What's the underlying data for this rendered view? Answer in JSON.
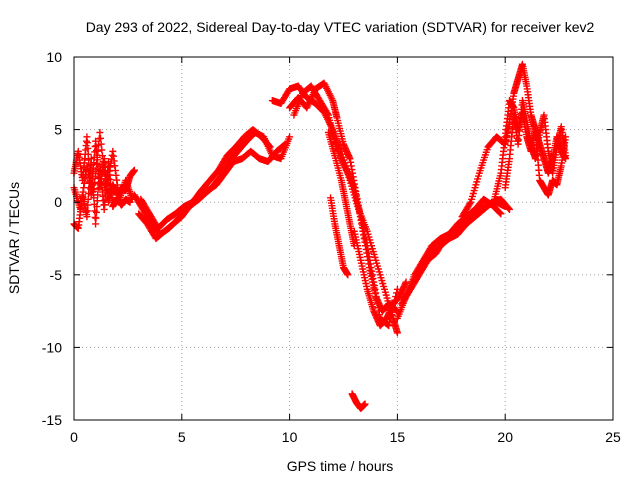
{
  "chart_data": {
    "type": "scatter",
    "title": "Day 293 of 2022, Sidereal Day-to-day VTEC variation (SDTVAR) for receiver kev2",
    "xlabel": "GPS time / hours",
    "ylabel": "SDTVAR / TECUs",
    "xlim": [
      0,
      25
    ],
    "ylim": [
      -15,
      10
    ],
    "xticks": [
      0,
      5,
      10,
      15,
      20,
      25
    ],
    "yticks": [
      -15,
      -10,
      -5,
      0,
      5,
      10
    ],
    "xtick_labels": [
      "0",
      "5",
      "10",
      "15",
      "20",
      "25"
    ],
    "ytick_labels": [
      "-15",
      "-10",
      "-5",
      "0",
      "5",
      "10"
    ],
    "grid": true,
    "marker": "+",
    "series": [
      {
        "name": "SDTVAR",
        "color": "#ff0000",
        "tracks": [
          [
            [
              0.0,
              2.0
            ],
            [
              0.2,
              3.5
            ],
            [
              0.4,
              1.5
            ],
            [
              0.6,
              4.5
            ],
            [
              0.8,
              0.5
            ],
            [
              1.0,
              4.2
            ],
            [
              1.2,
              1.0
            ],
            [
              1.4,
              3.0
            ],
            [
              1.6,
              0.0
            ],
            [
              1.8,
              1.2
            ],
            [
              2.0,
              0.5
            ],
            [
              2.2,
              1.0
            ],
            [
              2.4,
              0.8
            ],
            [
              2.6,
              1.8
            ],
            [
              2.8,
              2.2
            ]
          ],
          [
            [
              0.0,
              -1.5
            ],
            [
              0.2,
              -1.8
            ],
            [
              0.4,
              0.5
            ],
            [
              0.6,
              -1.0
            ],
            [
              0.8,
              3.0
            ],
            [
              1.0,
              -1.5
            ],
            [
              1.2,
              2.5
            ],
            [
              1.4,
              -0.5
            ],
            [
              1.6,
              2.8
            ],
            [
              1.8,
              -0.3
            ],
            [
              2.0,
              0.3
            ],
            [
              2.2,
              -0.2
            ],
            [
              2.4,
              0.2
            ],
            [
              2.6,
              0.0
            ]
          ],
          [
            [
              0.0,
              1.0
            ],
            [
              0.3,
              -0.5
            ],
            [
              0.6,
              2.5
            ],
            [
              0.9,
              0.5
            ],
            [
              1.2,
              4.8
            ],
            [
              1.5,
              0.8
            ],
            [
              1.8,
              3.5
            ],
            [
              2.1,
              0.2
            ],
            [
              2.4,
              1.5
            ],
            [
              2.7,
              0.2
            ]
          ],
          [
            [
              2.8,
              0.5
            ],
            [
              3.2,
              -0.5
            ],
            [
              3.6,
              -1.5
            ],
            [
              4.0,
              -2.2
            ],
            [
              4.4,
              -1.8
            ],
            [
              4.8,
              -1.2
            ],
            [
              5.2,
              -0.5
            ],
            [
              5.6,
              0.0
            ],
            [
              6.0,
              0.5
            ],
            [
              6.4,
              1.0
            ],
            [
              6.8,
              1.8
            ],
            [
              7.2,
              2.8
            ],
            [
              7.6,
              3.5
            ],
            [
              8.0,
              4.2
            ],
            [
              8.4,
              4.8
            ],
            [
              8.8,
              4.5
            ],
            [
              9.2,
              3.2
            ],
            [
              9.6,
              3.0
            ],
            [
              10.0,
              4.5
            ]
          ],
          [
            [
              3.0,
              -0.8
            ],
            [
              3.4,
              -1.5
            ],
            [
              3.8,
              -2.5
            ],
            [
              4.2,
              -2.0
            ],
            [
              4.6,
              -1.5
            ],
            [
              5.0,
              -1.0
            ],
            [
              5.4,
              -0.2
            ],
            [
              5.8,
              0.2
            ],
            [
              6.2,
              0.8
            ],
            [
              6.6,
              1.2
            ],
            [
              7.0,
              2.0
            ],
            [
              7.4,
              2.8
            ],
            [
              7.8,
              3.0
            ],
            [
              8.2,
              3.5
            ],
            [
              8.6,
              3.0
            ],
            [
              9.0,
              2.8
            ],
            [
              9.4,
              3.5
            ],
            [
              9.8,
              4.0
            ]
          ],
          [
            [
              3.1,
              0.2
            ],
            [
              3.5,
              -0.8
            ],
            [
              3.9,
              -1.8
            ],
            [
              4.3,
              -1.2
            ],
            [
              4.7,
              -0.8
            ],
            [
              5.1,
              -0.3
            ],
            [
              5.5,
              0.0
            ],
            [
              5.9,
              0.8
            ],
            [
              6.3,
              1.5
            ],
            [
              6.7,
              2.2
            ],
            [
              7.1,
              3.2
            ],
            [
              7.5,
              3.8
            ],
            [
              7.9,
              4.5
            ],
            [
              8.3,
              5.0
            ],
            [
              8.7,
              4.5
            ],
            [
              9.1,
              3.8
            ]
          ],
          [
            [
              9.2,
              7.0
            ],
            [
              9.6,
              6.8
            ],
            [
              10.0,
              7.8
            ],
            [
              10.4,
              8.0
            ],
            [
              10.8,
              7.2
            ],
            [
              11.2,
              6.8
            ],
            [
              11.6,
              6.2
            ],
            [
              12.0,
              5.0
            ],
            [
              12.4,
              3.5
            ],
            [
              12.8,
              1.5
            ],
            [
              13.2,
              -0.5
            ],
            [
              13.6,
              -2.0
            ],
            [
              14.0,
              -4.0
            ],
            [
              14.4,
              -6.0
            ],
            [
              14.8,
              -8.0
            ],
            [
              15.0,
              -9.0
            ]
          ],
          [
            [
              10.0,
              6.5
            ],
            [
              10.4,
              7.2
            ],
            [
              10.8,
              6.5
            ],
            [
              11.2,
              7.8
            ],
            [
              11.6,
              8.2
            ],
            [
              12.0,
              7.0
            ],
            [
              12.2,
              5.8
            ],
            [
              12.5,
              4.0
            ],
            [
              12.8,
              3.0
            ],
            [
              13.1,
              0.5
            ],
            [
              13.4,
              -2.0
            ],
            [
              13.7,
              -4.5
            ],
            [
              14.0,
              -6.5
            ],
            [
              14.3,
              -7.5
            ],
            [
              14.6,
              -7.0
            ],
            [
              15.0,
              -7.5
            ]
          ],
          [
            [
              10.2,
              6.0
            ],
            [
              10.6,
              7.5
            ],
            [
              11.0,
              8.0
            ],
            [
              11.4,
              7.0
            ],
            [
              11.8,
              6.0
            ],
            [
              12.1,
              4.2
            ],
            [
              12.4,
              3.0
            ],
            [
              12.7,
              2.0
            ],
            [
              13.0,
              1.0
            ],
            [
              13.3,
              -1.0
            ],
            [
              13.6,
              -3.0
            ],
            [
              13.9,
              -5.5
            ],
            [
              14.2,
              -8.0
            ],
            [
              14.6,
              -8.5
            ],
            [
              15.0,
              -6.0
            ]
          ],
          [
            [
              11.8,
              4.8
            ],
            [
              12.1,
              3.2
            ],
            [
              12.4,
              1.5
            ],
            [
              12.6,
              0.0
            ],
            [
              12.8,
              -1.5
            ],
            [
              13.0,
              -3.0
            ]
          ],
          [
            [
              11.9,
              0.3
            ],
            [
              12.1,
              -1.5
            ],
            [
              12.3,
              -3.0
            ],
            [
              12.5,
              -4.5
            ],
            [
              12.7,
              -5.0
            ]
          ],
          [
            [
              12.9,
              -13.2
            ],
            [
              13.1,
              -13.8
            ],
            [
              13.3,
              -14.2
            ],
            [
              13.5,
              -13.9
            ]
          ],
          [
            [
              13.0,
              -2.0
            ],
            [
              13.3,
              -4.0
            ],
            [
              13.6,
              -6.0
            ],
            [
              13.9,
              -7.5
            ],
            [
              14.2,
              -8.5
            ],
            [
              14.5,
              -8.0
            ],
            [
              14.8,
              -7.0
            ],
            [
              15.1,
              -6.5
            ],
            [
              15.4,
              -5.5
            ]
          ],
          [
            [
              15.0,
              -8.0
            ],
            [
              15.4,
              -6.5
            ],
            [
              15.8,
              -5.5
            ],
            [
              16.2,
              -4.5
            ],
            [
              16.6,
              -3.5
            ],
            [
              17.0,
              -3.0
            ],
            [
              17.4,
              -2.5
            ],
            [
              17.8,
              -2.2
            ],
            [
              18.2,
              -1.5
            ],
            [
              18.6,
              -1.0
            ],
            [
              19.0,
              -0.5
            ],
            [
              19.4,
              0.0
            ],
            [
              19.8,
              0.2
            ],
            [
              20.2,
              -0.5
            ]
          ],
          [
            [
              15.2,
              -7.0
            ],
            [
              15.6,
              -6.0
            ],
            [
              16.0,
              -5.0
            ],
            [
              16.4,
              -4.0
            ],
            [
              16.8,
              -3.5
            ],
            [
              17.2,
              -2.5
            ],
            [
              17.6,
              -2.0
            ],
            [
              18.0,
              -1.5
            ],
            [
              18.4,
              -0.8
            ],
            [
              18.8,
              -0.5
            ],
            [
              19.2,
              -0.2
            ],
            [
              19.6,
              0.0
            ],
            [
              20.0,
              -0.3
            ]
          ],
          [
            [
              15.4,
              -6.5
            ],
            [
              15.8,
              -5.0
            ],
            [
              16.2,
              -4.0
            ],
            [
              16.6,
              -3.0
            ],
            [
              17.0,
              -2.5
            ],
            [
              17.4,
              -2.2
            ],
            [
              17.8,
              -1.5
            ],
            [
              18.2,
              -1.0
            ],
            [
              18.6,
              -0.5
            ],
            [
              19.0,
              0.2
            ],
            [
              19.4,
              -0.2
            ],
            [
              19.8,
              -0.8
            ]
          ],
          [
            [
              18.0,
              -1.0
            ],
            [
              18.4,
              0.0
            ],
            [
              18.8,
              2.0
            ],
            [
              19.2,
              3.8
            ],
            [
              19.6,
              4.5
            ],
            [
              20.0,
              4.0
            ],
            [
              20.2,
              5.5
            ],
            [
              20.4,
              7.5
            ],
            [
              20.6,
              8.5
            ],
            [
              20.8,
              9.5
            ],
            [
              21.0,
              8.0
            ],
            [
              21.2,
              6.0
            ],
            [
              21.4,
              5.0
            ],
            [
              21.6,
              4.0
            ],
            [
              21.8,
              3.0
            ],
            [
              22.0,
              2.0
            ],
            [
              22.2,
              3.0
            ],
            [
              22.4,
              4.5
            ],
            [
              22.6,
              3.5
            ],
            [
              22.8,
              3.0
            ]
          ],
          [
            [
              19.5,
              0.2
            ],
            [
              19.8,
              2.0
            ],
            [
              20.0,
              4.5
            ],
            [
              20.2,
              7.0
            ],
            [
              20.4,
              6.5
            ],
            [
              20.6,
              5.0
            ],
            [
              20.8,
              6.2
            ],
            [
              21.0,
              4.5
            ],
            [
              21.2,
              3.5
            ],
            [
              21.4,
              5.0
            ],
            [
              21.6,
              1.5
            ],
            [
              21.8,
              1.0
            ],
            [
              22.0,
              0.5
            ],
            [
              22.2,
              1.5
            ],
            [
              22.4,
              1.2
            ],
            [
              22.6,
              2.5
            ],
            [
              22.8,
              4.5
            ]
          ],
          [
            [
              20.0,
              1.0
            ],
            [
              20.2,
              3.0
            ],
            [
              20.4,
              6.0
            ],
            [
              20.6,
              4.0
            ],
            [
              20.8,
              7.0
            ],
            [
              21.0,
              5.5
            ],
            [
              21.2,
              4.0
            ],
            [
              21.4,
              3.0
            ],
            [
              21.6,
              4.8
            ],
            [
              21.8,
              6.0
            ],
            [
              22.0,
              3.5
            ],
            [
              22.2,
              2.0
            ],
            [
              22.4,
              3.8
            ],
            [
              22.6,
              5.2
            ],
            [
              22.8,
              3.2
            ]
          ]
        ]
      }
    ]
  }
}
